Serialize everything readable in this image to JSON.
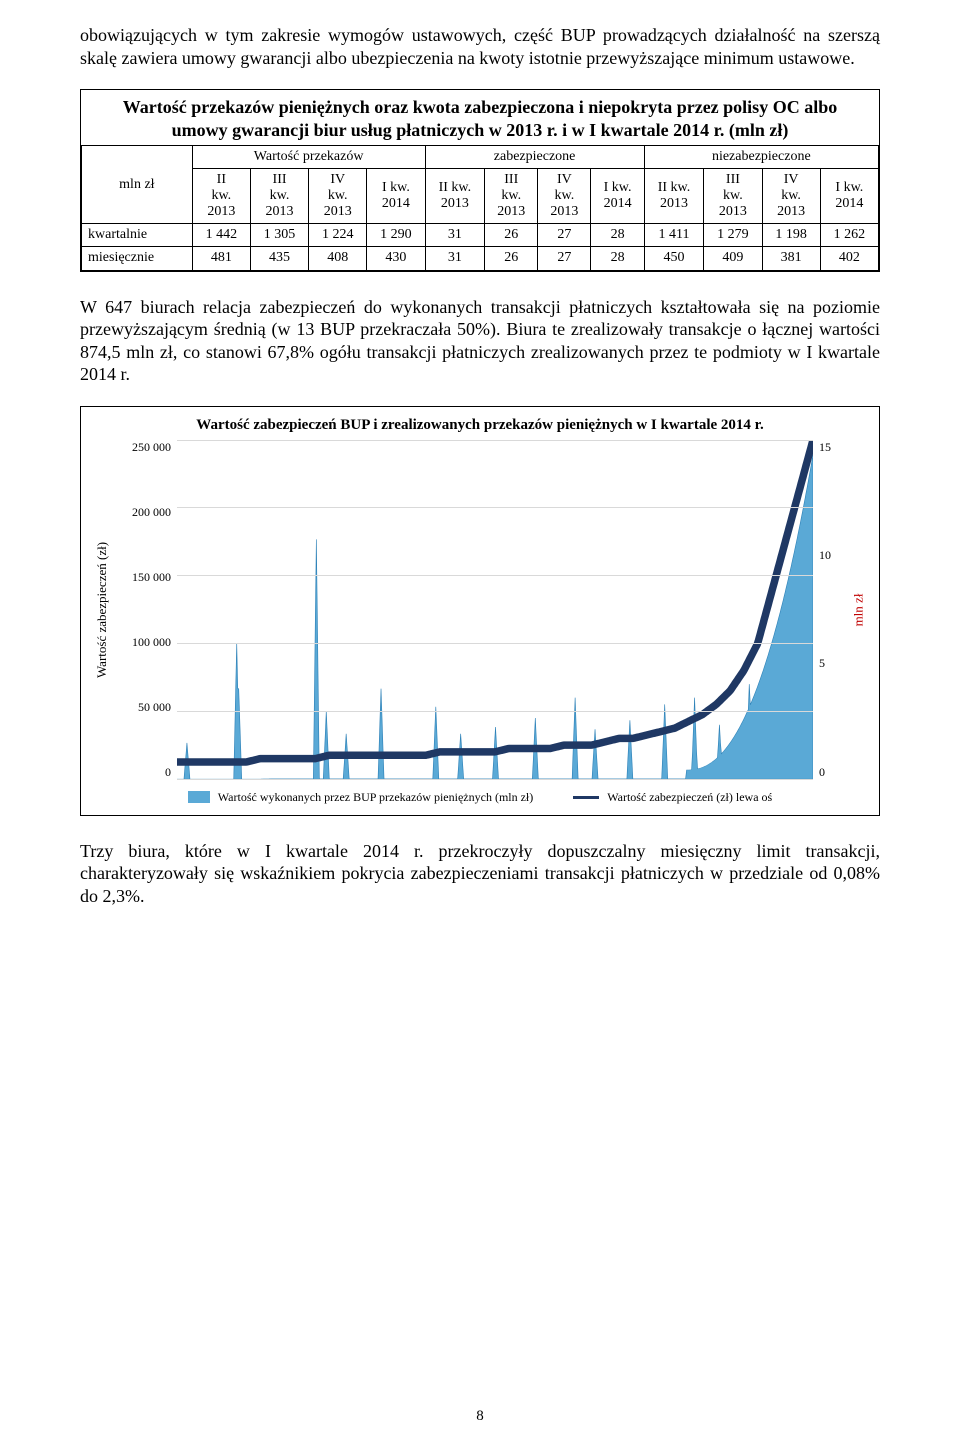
{
  "paragraphs": {
    "p1": "obowiązujących w tym zakresie wymogów ustawowych, część BUP prowadzących działalność na szerszą skalę zawiera umowy gwarancji albo ubezpieczenia na kwoty istotnie przewyższające minimum ustawowe.",
    "p2": "W 647 biurach relacja zabezpieczeń do wykonanych transakcji płatniczych kształtowała się na poziomie przewyższającym średnią (w 13 BUP przekraczała 50%). Biura te zrealizowały transakcje o łącznej wartości 874,5 mln zł, co stanowi 67,8% ogółu transakcji płatniczych zrealizowanych przez te podmioty w I kwartale 2014 r.",
    "p3": "Trzy biura, które w I kwartale 2014 r. przekroczyły dopuszczalny miesięczny limit transakcji, charakteryzowały się wskaźnikiem pokrycia zabezpieczeniami transakcji płatniczych w przedziale od 0,08% do 2,3%."
  },
  "table": {
    "title": "Wartość przekazów pieniężnych oraz kwota zabezpieczona i niepokryta przez polisy OC albo umowy gwarancji biur usług płatniczych w 2013 r. i w I kwartale 2014 r. (mln zł)",
    "corner_label": "mln zł",
    "group_headers": [
      "Wartość przekazów",
      "zabezpieczone",
      "niezabezpieczone"
    ],
    "col_headers": [
      "II\nkw.\n2013",
      "III\nkw.\n2013",
      "IV\nkw.\n2013",
      "I kw.\n2014",
      "II kw.\n2013",
      "III\nkw.\n2013",
      "IV\nkw.\n2013",
      "I kw.\n2014",
      "II kw.\n2013",
      "III\nkw.\n2013",
      "IV\nkw.\n2013",
      "I kw.\n2014"
    ],
    "rows": [
      {
        "label": "kwartalnie",
        "vals": [
          "1 442",
          "1 305",
          "1 224",
          "1 290",
          "31",
          "26",
          "27",
          "28",
          "1 411",
          "1 279",
          "1 198",
          "1 262"
        ]
      },
      {
        "label": "miesięcznie",
        "vals": [
          "481",
          "435",
          "408",
          "430",
          "31",
          "26",
          "27",
          "28",
          "450",
          "409",
          "381",
          "402"
        ]
      }
    ]
  },
  "chart": {
    "title": "Wartość zabezpieczeń BUP i zrealizowanych przekazów pieniężnych w I kwartale 2014 r.",
    "left_axis_label": "Wartość zabezpieczeń (zł)",
    "right_axis_label": "mln zł",
    "right_axis_label_color": "#c00000",
    "left_ticks": [
      "250 000",
      "200 000",
      "150 000",
      "100 000",
      "50 000",
      "0"
    ],
    "right_ticks": [
      "15",
      "10",
      "5",
      "0"
    ],
    "ylim_left": [
      0,
      250000
    ],
    "ylim_right": [
      0,
      15
    ],
    "background_color": "#ffffff",
    "grid_color": "#d9d9d9",
    "area_color": "#5aa9d6",
    "area_stroke": "#2e82b8",
    "line_color": "#1f3864",
    "line_width": 2.5,
    "n_points": 640,
    "legend": [
      {
        "type": "area",
        "label": "Wartość wykonanych przez BUP przekazów pieniężnych  (mln zł)"
      },
      {
        "type": "line",
        "label": "Wartość zabezpieczeń (zł) lewa oś"
      }
    ],
    "area_base": [
      0,
      0,
      0,
      0,
      0,
      0,
      0,
      0.01,
      0.01,
      0.01,
      0.01,
      0.01,
      0.01,
      0.01,
      0.01,
      0.01,
      0.01,
      0.01,
      0.01,
      0.01,
      0.01,
      0.01,
      0.01,
      0.01,
      0.01,
      0.01,
      0.01,
      0.01,
      0.01,
      0.01,
      0.01,
      0.01,
      0.01,
      0.01,
      0.01,
      0.01,
      0.01,
      0.01,
      0.01,
      0.01,
      0.01,
      0.01,
      0.01,
      0.01,
      0.01,
      0.02,
      0.02
    ],
    "spikes": [
      {
        "i": 10,
        "h": 1.6
      },
      {
        "i": 60,
        "h": 6.0
      },
      {
        "i": 62,
        "h": 4.0
      },
      {
        "i": 140,
        "h": 10.6
      },
      {
        "i": 150,
        "h": 3.0
      },
      {
        "i": 170,
        "h": 2.0
      },
      {
        "i": 205,
        "h": 4.0
      },
      {
        "i": 260,
        "h": 3.2
      },
      {
        "i": 285,
        "h": 2.0
      },
      {
        "i": 320,
        "h": 2.3
      },
      {
        "i": 360,
        "h": 2.7
      },
      {
        "i": 400,
        "h": 3.6
      },
      {
        "i": 420,
        "h": 2.2
      },
      {
        "i": 455,
        "h": 2.6
      },
      {
        "i": 490,
        "h": 3.3
      },
      {
        "i": 520,
        "h": 3.6
      },
      {
        "i": 545,
        "h": 2.4
      },
      {
        "i": 575,
        "h": 4.2
      }
    ],
    "line_values": [
      0.05,
      0.05,
      0.05,
      0.05,
      0.05,
      0.05,
      0.06,
      0.06,
      0.06,
      0.06,
      0.06,
      0.07,
      0.07,
      0.07,
      0.07,
      0.07,
      0.07,
      0.07,
      0.07,
      0.08,
      0.08,
      0.08,
      0.08,
      0.08,
      0.09,
      0.09,
      0.09,
      0.09,
      0.1,
      0.1,
      0.1,
      0.11,
      0.12,
      0.12,
      0.13,
      0.14,
      0.15,
      0.17,
      0.19,
      0.22,
      0.26,
      0.32,
      0.4,
      0.55,
      0.7,
      0.85,
      1.0
    ]
  },
  "page_number": "8"
}
